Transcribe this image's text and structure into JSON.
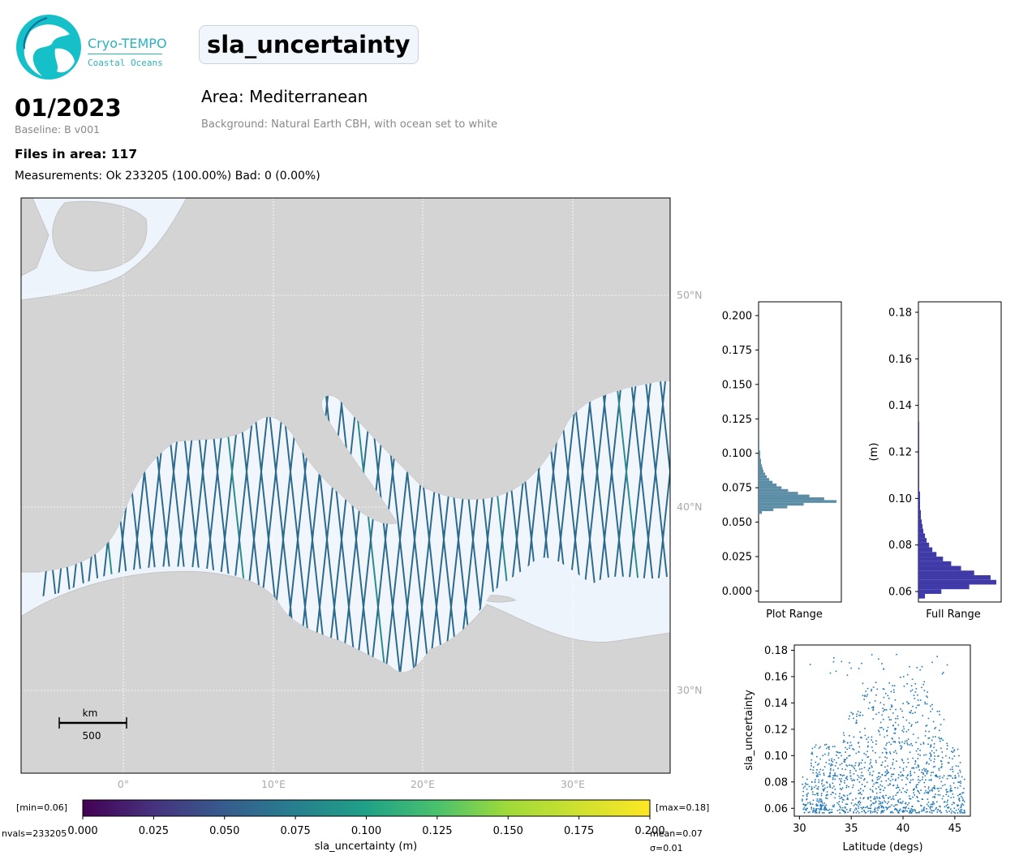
{
  "logo": {
    "line1": "Cryo-TEMPO",
    "line2": "Coastal Oceans"
  },
  "header": {
    "title": "sla_uncertainty",
    "date": "01/2023",
    "baseline": "Baseline: B v001",
    "area": "Area: Mediterranean",
    "background_note": "Background: Natural Earth CBH, with ocean set to white",
    "files": "Files in area: 117",
    "measurements": "Measurements: Ok 233205 (100.00%) Bad: 0 (0.00%)"
  },
  "map": {
    "lon_labels": [
      "0°",
      "10°E",
      "20°E",
      "30°E"
    ],
    "lat_labels": [
      "50°N",
      "40°N",
      "30°N"
    ],
    "scalebar": {
      "unit": "km",
      "value": "500"
    }
  },
  "colorbar": {
    "min_label": "[min=0.06]",
    "max_label": "[max=0.18]",
    "ticks": [
      "0.000",
      "0.025",
      "0.050",
      "0.075",
      "0.100",
      "0.125",
      "0.150",
      "0.175",
      "0.200"
    ],
    "label": "sla_uncertainty (m)",
    "nvals": "nvals=233205",
    "mean": "mean=0.07",
    "sigma": "σ=0.01"
  },
  "chart_data": [
    {
      "type": "bar",
      "orientation": "horizontal",
      "xlabel": "Plot Range",
      "ylim": [
        -0.008,
        0.21
      ],
      "yticks": [
        "0.000",
        "0.025",
        "0.050",
        "0.075",
        "0.100",
        "0.125",
        "0.150",
        "0.175",
        "0.200"
      ],
      "bins": [
        0.056,
        0.058,
        0.06,
        0.062,
        0.064,
        0.066,
        0.068,
        0.07,
        0.072,
        0.074,
        0.076,
        0.078,
        0.08,
        0.082,
        0.084,
        0.086,
        0.088,
        0.09,
        0.092,
        0.094,
        0.096,
        0.098,
        0.1,
        0.102,
        0.104,
        0.106,
        0.108,
        0.11
      ],
      "counts": [
        4,
        18,
        35,
        55,
        95,
        80,
        62,
        48,
        36,
        28,
        22,
        17,
        13,
        10,
        8,
        6,
        5,
        4,
        3,
        3,
        2,
        2,
        2,
        1,
        1,
        1,
        1,
        1
      ]
    },
    {
      "type": "bar",
      "orientation": "horizontal",
      "xlabel": "Full Range",
      "ylabel": "(m)",
      "ylim": [
        0.0555,
        0.1845
      ],
      "yticks": [
        "0.06",
        "0.08",
        "0.10",
        "0.12",
        "0.14",
        "0.16",
        "0.18"
      ],
      "bins": [
        0.057,
        0.059,
        0.061,
        0.063,
        0.065,
        0.067,
        0.069,
        0.071,
        0.073,
        0.075,
        0.077,
        0.079,
        0.081,
        0.083,
        0.085,
        0.087,
        0.089,
        0.091,
        0.093,
        0.095,
        0.097,
        0.099,
        0.101,
        0.103,
        0.105,
        0.107,
        0.109,
        0.111,
        0.113,
        0.115,
        0.117,
        0.119,
        0.121,
        0.123,
        0.125,
        0.127,
        0.129,
        0.131
      ],
      "counts": [
        8,
        28,
        62,
        95,
        88,
        68,
        52,
        40,
        30,
        22,
        17,
        13,
        10,
        8,
        6,
        5,
        4,
        3,
        3,
        2,
        2,
        2,
        2,
        1,
        1,
        1,
        1,
        1,
        1,
        1,
        1,
        1,
        1,
        1,
        1,
        1,
        1,
        1
      ]
    },
    {
      "type": "scatter",
      "xlabel": "Latitude (degs)",
      "ylabel": "sla_uncertainty",
      "xlim": [
        29.5,
        46.5
      ],
      "ylim": [
        0.054,
        0.184
      ],
      "xticks": [
        "30",
        "35",
        "40",
        "45"
      ],
      "yticks": [
        "0.06",
        "0.08",
        "0.10",
        "0.12",
        "0.14",
        "0.16",
        "0.18"
      ],
      "series_color": "#1f77b4",
      "bands": [
        {
          "lat": [
            30.2,
            46.0
          ],
          "sla": [
            0.057,
            0.085
          ],
          "density": 0.5
        },
        {
          "lat": [
            31.0,
            45.5
          ],
          "sla": [
            0.085,
            0.11
          ],
          "density": 0.25
        },
        {
          "lat": [
            34.0,
            44.0
          ],
          "sla": [
            0.11,
            0.135
          ],
          "density": 0.1
        },
        {
          "lat": [
            36.0,
            43.0
          ],
          "sla": [
            0.135,
            0.16
          ],
          "density": 0.06
        },
        {
          "lat": [
            30.5,
            46.0
          ],
          "sla": [
            0.16,
            0.178
          ],
          "density": 0.02
        }
      ]
    }
  ]
}
